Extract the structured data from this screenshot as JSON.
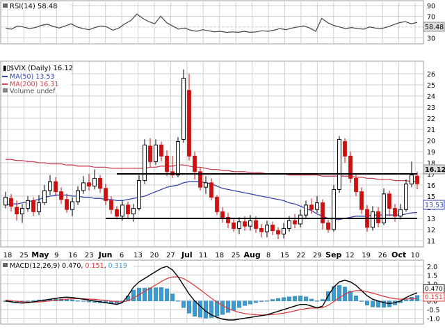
{
  "colors": {
    "rsi_line": "#444444",
    "grid": "#cfcfcf",
    "up_candle": "#000000",
    "down_candle": "#cc1111",
    "ma50": "#3344aa",
    "ma200": "#cc4455",
    "macd_line": "#000000",
    "signal_line": "#dd3333",
    "histogram": "#3d9ccf",
    "support_resistance": "#000000",
    "price_tag_bg": "#dddddd"
  },
  "rsi_panel": {
    "title": "RSI(14) 58.48",
    "levels": [
      "90",
      "70",
      "50",
      "30"
    ],
    "current_tag": "58.48"
  },
  "price_panel": {
    "legend": {
      "symbol": "$VIX (Daily) 16.12",
      "ma50": "MA(50) 13.53",
      "ma200": "MA(200) 16.31",
      "volume": "Volume undef"
    },
    "current_tag": "16.12",
    "ma50_tag": "13.53"
  },
  "date_axis": [
    "18",
    "25",
    "May",
    "9",
    "16",
    "23",
    "Jun",
    "6",
    "13",
    "20",
    "27",
    "Jul",
    "11",
    "18",
    "25",
    "Aug",
    "8",
    "15",
    "22",
    "29",
    "Sep",
    "12",
    "19",
    "26",
    "Oct",
    "10"
  ],
  "macd_panel": {
    "title_prefix": "MACD(12,26,9) ",
    "macd_value": "0.470",
    "signal_value": "0.151",
    "hist_value": "0.319",
    "levels": [
      "2.0",
      "1.5",
      "1.0",
      "0.5",
      "0.0",
      "-0.5",
      "-1.0"
    ],
    "tags": [
      "0.470",
      "0.151"
    ]
  },
  "chart_data": [
    {
      "type": "line",
      "title": "RSI(14) 58.48",
      "ylim": [
        20,
        95
      ],
      "yticks": [
        30,
        50,
        70,
        90
      ],
      "series": [
        {
          "name": "RSI(14)",
          "values": [
            48,
            46,
            52,
            50,
            47,
            49,
            53,
            55,
            51,
            48,
            52,
            56,
            50,
            47,
            45,
            49,
            52,
            50,
            44,
            48,
            56,
            62,
            74,
            66,
            60,
            56,
            70,
            58,
            52,
            46,
            48,
            44,
            42,
            45,
            43,
            41,
            42,
            40,
            41,
            40,
            42,
            40,
            41,
            43,
            42,
            44,
            47,
            45,
            48,
            50,
            52,
            48,
            42,
            66,
            58,
            53,
            50,
            47,
            49,
            47,
            46,
            50,
            48,
            47,
            50,
            54,
            58,
            60,
            56,
            58.48
          ]
        }
      ]
    },
    {
      "type": "candlestick",
      "title": "$VIX (Daily) 16.12",
      "xlabel": "",
      "ylabel": "",
      "ylim": [
        10.5,
        27
      ],
      "yticks": [
        11,
        12,
        13,
        14,
        15,
        16,
        17,
        18,
        19,
        20,
        21,
        22,
        23,
        24,
        25,
        26
      ],
      "candles": [
        {
          "o": 14.2,
          "c": 14.9,
          "h": 15.4,
          "l": 13.9
        },
        {
          "o": 14.8,
          "c": 14.1,
          "h": 15.2,
          "l": 13.6
        },
        {
          "o": 14.0,
          "c": 13.4,
          "h": 14.6,
          "l": 12.8
        },
        {
          "o": 13.4,
          "c": 13.9,
          "h": 14.3,
          "l": 12.6
        },
        {
          "o": 13.9,
          "c": 14.6,
          "h": 15.0,
          "l": 13.6
        },
        {
          "o": 14.6,
          "c": 13.6,
          "h": 14.9,
          "l": 13.2
        },
        {
          "o": 13.6,
          "c": 14.4,
          "h": 15.1,
          "l": 13.3
        },
        {
          "o": 14.4,
          "c": 15.5,
          "h": 16.0,
          "l": 14.2
        },
        {
          "o": 15.5,
          "c": 16.3,
          "h": 16.9,
          "l": 15.1
        },
        {
          "o": 16.3,
          "c": 15.4,
          "h": 16.7,
          "l": 15.0
        },
        {
          "o": 15.4,
          "c": 14.7,
          "h": 15.8,
          "l": 14.3
        },
        {
          "o": 14.7,
          "c": 13.8,
          "h": 15.2,
          "l": 13.5
        },
        {
          "o": 13.8,
          "c": 14.5,
          "h": 14.9,
          "l": 13.2
        },
        {
          "o": 14.5,
          "c": 15.5,
          "h": 15.9,
          "l": 14.2
        },
        {
          "o": 15.5,
          "c": 16.2,
          "h": 16.8,
          "l": 15.2
        },
        {
          "o": 16.2,
          "c": 15.9,
          "h": 17.0,
          "l": 15.5
        },
        {
          "o": 15.9,
          "c": 16.6,
          "h": 17.4,
          "l": 15.6
        },
        {
          "o": 16.6,
          "c": 15.7,
          "h": 16.9,
          "l": 15.3
        },
        {
          "o": 15.7,
          "c": 14.6,
          "h": 16.1,
          "l": 14.2
        },
        {
          "o": 14.6,
          "c": 13.8,
          "h": 15.0,
          "l": 13.4
        },
        {
          "o": 13.8,
          "c": 13.2,
          "h": 14.1,
          "l": 12.9
        },
        {
          "o": 13.2,
          "c": 14.2,
          "h": 14.6,
          "l": 12.8
        },
        {
          "o": 14.2,
          "c": 13.4,
          "h": 14.5,
          "l": 13.0
        },
        {
          "o": 13.4,
          "c": 13.9,
          "h": 14.3,
          "l": 12.7
        },
        {
          "o": 13.9,
          "c": 16.4,
          "h": 16.9,
          "l": 13.7
        },
        {
          "o": 16.4,
          "c": 19.6,
          "h": 20.1,
          "l": 16.1
        },
        {
          "o": 19.5,
          "c": 18.1,
          "h": 20.2,
          "l": 17.6
        },
        {
          "o": 18.1,
          "c": 19.6,
          "h": 20.1,
          "l": 17.8
        },
        {
          "o": 19.6,
          "c": 18.6,
          "h": 19.9,
          "l": 18.1
        },
        {
          "o": 18.6,
          "c": 17.2,
          "h": 19.1,
          "l": 16.8
        },
        {
          "o": 17.2,
          "c": 16.9,
          "h": 18.6,
          "l": 16.6
        },
        {
          "o": 16.9,
          "c": 19.9,
          "h": 20.3,
          "l": 16.7
        },
        {
          "o": 20.1,
          "c": 25.6,
          "h": 26.4,
          "l": 19.8
        },
        {
          "o": 24.5,
          "c": 18.6,
          "h": 26.0,
          "l": 18.2
        },
        {
          "o": 18.6,
          "c": 17.2,
          "h": 19.0,
          "l": 16.5
        },
        {
          "o": 17.2,
          "c": 15.8,
          "h": 17.6,
          "l": 15.5
        },
        {
          "o": 15.8,
          "c": 16.2,
          "h": 16.8,
          "l": 15.2
        },
        {
          "o": 16.2,
          "c": 14.9,
          "h": 16.6,
          "l": 14.6
        },
        {
          "o": 14.9,
          "c": 13.6,
          "h": 15.1,
          "l": 13.3
        },
        {
          "o": 13.6,
          "c": 13.1,
          "h": 14.0,
          "l": 12.6
        },
        {
          "o": 13.1,
          "c": 12.6,
          "h": 13.5,
          "l": 12.1
        },
        {
          "o": 12.6,
          "c": 12.1,
          "h": 13.0,
          "l": 11.8
        },
        {
          "o": 12.1,
          "c": 12.7,
          "h": 13.1,
          "l": 11.6
        },
        {
          "o": 12.7,
          "c": 12.3,
          "h": 13.2,
          "l": 11.9
        },
        {
          "o": 12.3,
          "c": 12.8,
          "h": 13.3,
          "l": 11.9
        },
        {
          "o": 12.8,
          "c": 12.1,
          "h": 13.2,
          "l": 11.7
        },
        {
          "o": 12.1,
          "c": 11.8,
          "h": 12.5,
          "l": 11.3
        },
        {
          "o": 11.8,
          "c": 12.4,
          "h": 12.8,
          "l": 11.3
        },
        {
          "o": 12.4,
          "c": 11.9,
          "h": 12.7,
          "l": 11.5
        },
        {
          "o": 11.9,
          "c": 11.6,
          "h": 12.2,
          "l": 11.1
        },
        {
          "o": 11.6,
          "c": 12.1,
          "h": 12.6,
          "l": 11.2
        },
        {
          "o": 12.1,
          "c": 12.8,
          "h": 13.2,
          "l": 11.8
        },
        {
          "o": 12.8,
          "c": 12.5,
          "h": 13.4,
          "l": 12.1
        },
        {
          "o": 12.5,
          "c": 13.3,
          "h": 13.8,
          "l": 12.2
        },
        {
          "o": 13.3,
          "c": 14.2,
          "h": 14.6,
          "l": 13.0
        },
        {
          "o": 14.2,
          "c": 13.8,
          "h": 14.8,
          "l": 13.4
        },
        {
          "o": 13.8,
          "c": 14.4,
          "h": 15.0,
          "l": 13.5
        },
        {
          "o": 14.4,
          "c": 12.6,
          "h": 14.7,
          "l": 12.0
        },
        {
          "o": 12.6,
          "c": 12.0,
          "h": 12.9,
          "l": 11.7
        },
        {
          "o": 12.0,
          "c": 15.6,
          "h": 16.0,
          "l": 11.8
        },
        {
          "o": 15.6,
          "c": 20.1,
          "h": 20.4,
          "l": 15.3
        },
        {
          "o": 19.9,
          "c": 18.6,
          "h": 20.2,
          "l": 18.0
        },
        {
          "o": 18.6,
          "c": 16.6,
          "h": 19.0,
          "l": 16.2
        },
        {
          "o": 16.6,
          "c": 15.4,
          "h": 17.0,
          "l": 15.0
        },
        {
          "o": 15.4,
          "c": 13.8,
          "h": 15.8,
          "l": 13.4
        },
        {
          "o": 13.8,
          "c": 12.2,
          "h": 14.2,
          "l": 11.8
        },
        {
          "o": 12.2,
          "c": 13.6,
          "h": 14.1,
          "l": 11.9
        },
        {
          "o": 13.6,
          "c": 12.6,
          "h": 14.0,
          "l": 12.2
        },
        {
          "o": 12.6,
          "c": 15.2,
          "h": 15.7,
          "l": 12.4
        },
        {
          "o": 15.2,
          "c": 13.9,
          "h": 15.5,
          "l": 13.2
        },
        {
          "o": 13.9,
          "c": 13.2,
          "h": 14.3,
          "l": 12.7
        },
        {
          "o": 13.2,
          "c": 13.8,
          "h": 14.3,
          "l": 12.9
        },
        {
          "o": 13.8,
          "c": 16.1,
          "h": 16.5,
          "l": 13.6
        },
        {
          "o": 16.1,
          "c": 16.9,
          "h": 18.1,
          "l": 15.8
        },
        {
          "o": 16.8,
          "c": 16.12,
          "h": 17.2,
          "l": 15.6
        }
      ],
      "series": [
        {
          "name": "MA(50) 13.53",
          "values": [
            14.2,
            14.3,
            14.3,
            14.4,
            14.5,
            14.6,
            14.7,
            14.9,
            15.0,
            15.1,
            15.1,
            15.1,
            15.0,
            15.0,
            14.9,
            14.9,
            14.8,
            14.8,
            14.7,
            14.7,
            14.6,
            14.6,
            14.7,
            14.8,
            14.9,
            15.0,
            15.2,
            15.4,
            15.6,
            15.8,
            15.9,
            16.0,
            16.2,
            16.3,
            16.3,
            16.3,
            16.2,
            16.1,
            15.9,
            15.7,
            15.6,
            15.5,
            15.4,
            15.3,
            15.2,
            15.1,
            15.0,
            14.9,
            14.8,
            14.7,
            14.6,
            14.4,
            14.3,
            14.1,
            13.9,
            13.7,
            13.4,
            13.2,
            13.0,
            12.9,
            12.9,
            13.0,
            13.1,
            13.2,
            13.2,
            13.2,
            13.3,
            13.3,
            13.3,
            13.3,
            13.3,
            13.3,
            13.4,
            13.5,
            13.53
          ]
        },
        {
          "name": "MA(200) 16.31",
          "values": [
            18.3,
            18.3,
            18.2,
            18.2,
            18.1,
            18.1,
            18.0,
            18.0,
            17.9,
            17.9,
            17.9,
            17.8,
            17.8,
            17.7,
            17.7,
            17.7,
            17.6,
            17.6,
            17.6,
            17.5,
            17.5,
            17.5,
            17.5,
            17.5,
            17.5,
            17.5,
            17.6,
            17.6,
            17.7,
            17.7,
            17.7,
            17.8,
            17.8,
            17.7,
            17.6,
            17.6,
            17.5,
            17.4,
            17.4,
            17.3,
            17.3,
            17.2,
            17.2,
            17.2,
            17.1,
            17.1,
            17.1,
            17.0,
            17.0,
            17.0,
            17.0,
            16.9,
            16.9,
            16.9,
            16.9,
            16.9,
            16.9,
            16.8,
            16.8,
            16.8,
            16.8,
            16.8,
            16.8,
            16.7,
            16.7,
            16.6,
            16.6,
            16.5,
            16.5,
            16.5,
            16.4,
            16.4,
            16.4,
            16.3,
            16.31
          ]
        }
      ],
      "hlines": [
        {
          "y": 17.0,
          "from_index": 20,
          "to_index": 74
        },
        {
          "y": 13.0,
          "from_index": 18,
          "to_index": 74
        }
      ]
    },
    {
      "type": "line",
      "title": "MACD(12,26,9) 0.470, 0.151, 0.319",
      "ylim": [
        -1.3,
        2.2
      ],
      "yticks": [
        -1.0,
        -0.5,
        0.0,
        0.5,
        1.0,
        1.5,
        2.0
      ],
      "series": [
        {
          "name": "MACD",
          "values": [
            0.0,
            -0.05,
            -0.1,
            -0.12,
            -0.1,
            -0.05,
            0.0,
            0.05,
            0.1,
            0.15,
            0.2,
            0.22,
            0.2,
            0.15,
            0.1,
            0.05,
            0.0,
            -0.05,
            -0.1,
            -0.15,
            -0.2,
            -0.1,
            0.3,
            0.8,
            1.1,
            1.3,
            1.5,
            1.7,
            1.9,
            2.0,
            1.8,
            1.4,
            0.9,
            0.4,
            0.0,
            -0.3,
            -0.6,
            -0.8,
            -0.95,
            -1.05,
            -1.1,
            -1.1,
            -1.05,
            -1.0,
            -0.95,
            -0.9,
            -0.85,
            -0.8,
            -0.7,
            -0.6,
            -0.5,
            -0.4,
            -0.3,
            -0.2,
            -0.2,
            -0.3,
            -0.4,
            -0.3,
            0.3,
            0.8,
            1.1,
            1.2,
            1.1,
            0.9,
            0.6,
            0.3,
            0.1,
            0.0,
            -0.1,
            -0.15,
            -0.1,
            0.0,
            0.2,
            0.35,
            0.47
          ]
        },
        {
          "name": "Signal",
          "values": [
            0.05,
            0.02,
            -0.02,
            -0.05,
            -0.07,
            -0.07,
            -0.06,
            -0.03,
            0.0,
            0.04,
            0.08,
            0.11,
            0.13,
            0.14,
            0.13,
            0.11,
            0.09,
            0.06,
            0.03,
            -0.01,
            -0.05,
            -0.06,
            0.01,
            0.17,
            0.36,
            0.55,
            0.74,
            0.93,
            1.12,
            1.29,
            1.39,
            1.39,
            1.29,
            1.11,
            0.89,
            0.65,
            0.4,
            0.16,
            -0.06,
            -0.26,
            -0.43,
            -0.56,
            -0.66,
            -0.73,
            -0.77,
            -0.8,
            -0.81,
            -0.81,
            -0.79,
            -0.75,
            -0.7,
            -0.64,
            -0.57,
            -0.5,
            -0.44,
            -0.41,
            -0.41,
            -0.39,
            -0.25,
            -0.04,
            0.19,
            0.39,
            0.53,
            0.6,
            0.6,
            0.54,
            0.45,
            0.36,
            0.27,
            0.19,
            0.13,
            0.1,
            0.12,
            0.13,
            0.151
          ]
        }
      ],
      "histogram": {
        "name": "Histogram",
        "values": [
          -0.05,
          -0.07,
          -0.08,
          -0.07,
          -0.03,
          0.02,
          0.06,
          0.08,
          0.1,
          0.11,
          0.12,
          0.11,
          0.07,
          0.01,
          -0.03,
          -0.06,
          -0.09,
          -0.11,
          -0.13,
          -0.14,
          -0.15,
          -0.04,
          0.29,
          0.63,
          0.74,
          0.75,
          0.76,
          0.77,
          0.78,
          0.71,
          0.41,
          0.01,
          -0.39,
          -0.71,
          -0.89,
          -0.95,
          -1.0,
          -0.96,
          -0.89,
          -0.79,
          -0.67,
          -0.54,
          -0.39,
          -0.27,
          -0.18,
          -0.1,
          -0.04,
          0.01,
          0.09,
          0.15,
          0.2,
          0.24,
          0.27,
          0.3,
          0.24,
          0.11,
          0.01,
          0.09,
          0.55,
          0.84,
          0.91,
          0.81,
          0.57,
          0.3,
          0.0,
          -0.24,
          -0.35,
          -0.36,
          -0.37,
          -0.34,
          -0.23,
          -0.1,
          0.08,
          0.22,
          0.319
        ]
      }
    }
  ]
}
